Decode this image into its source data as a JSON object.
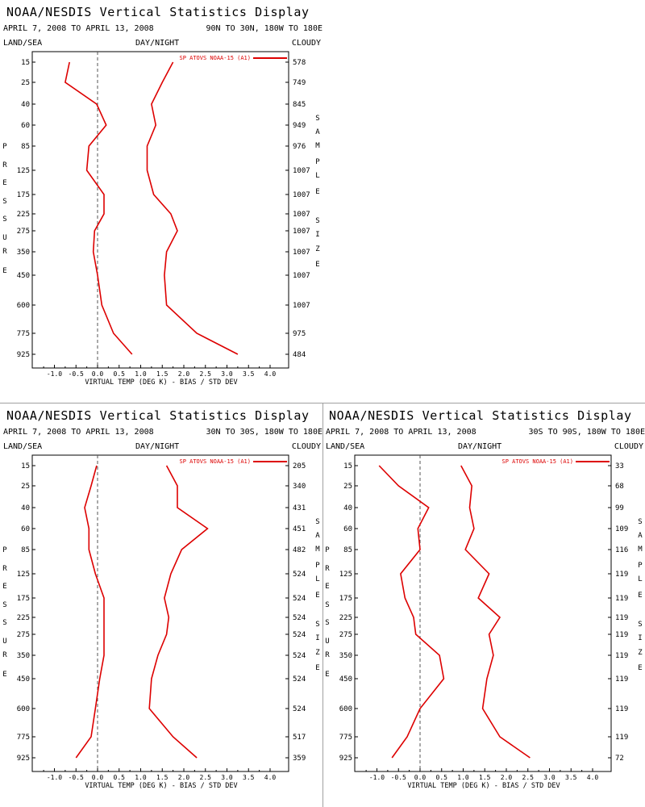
{
  "pressure_levels": [
    "15",
    "25",
    "40",
    "60",
    "85",
    "125",
    "175",
    "225",
    "275",
    "350",
    "450",
    "600",
    "775",
    "925"
  ],
  "x_ticks": [
    "-1.0",
    "-0.5",
    "0.0",
    "0.5",
    "1.0",
    "1.5",
    "2.0",
    "2.5",
    "3.0",
    "3.5",
    "4.0"
  ],
  "colors": {
    "series": "#dd0000",
    "zero_line": "#555555",
    "divider": "#a0a0a0"
  },
  "chart_data": [
    {
      "type": "line",
      "title": "NOAA/NESDIS Vertical Statistics Display",
      "date_range": "APRIL 7, 2008 TO APRIL 13, 2008",
      "region": "90N TO 30N, 180W TO 180E",
      "header_left": "LAND/SEA",
      "header_mid": "DAY/NIGHT",
      "header_right": "CLOUDY",
      "xlabel": "VIRTUAL TEMP (DEG K) - BIAS / STD DEV",
      "ylabel": "PRESSURE",
      "y2label": "SAMPLE SIZE",
      "legend": "SP ATOVS NOAA-15 (A1)",
      "xlim": [
        -1.5,
        4.25
      ],
      "levels": [
        15,
        25,
        40,
        60,
        85,
        125,
        175,
        225,
        275,
        350,
        450,
        600,
        775,
        925
      ],
      "bias": [
        -0.65,
        -0.75,
        -0.02,
        0.2,
        -0.2,
        -0.25,
        0.15,
        0.15,
        -0.07,
        -0.1,
        0.0,
        0.1,
        0.37,
        0.8
      ],
      "std_dev": [
        1.75,
        1.5,
        1.25,
        1.35,
        1.15,
        1.15,
        1.3,
        1.7,
        1.85,
        1.6,
        1.55,
        1.6,
        2.3,
        3.25
      ],
      "sample_size": [
        "578",
        "749",
        "845",
        "949",
        "976",
        "1007",
        "1007",
        "1007",
        "1007",
        "1007",
        "1007",
        "1007",
        "975",
        "484"
      ]
    },
    {
      "type": "line",
      "title": "NOAA/NESDIS Vertical Statistics Display",
      "date_range": "APRIL 7, 2008 TO APRIL 13, 2008",
      "region": "30N TO 30S, 180W TO 180E",
      "header_left": "LAND/SEA",
      "header_mid": "DAY/NIGHT",
      "header_right": "CLOUDY",
      "xlabel": "VIRTUAL TEMP (DEG K) - BIAS / STD DEV",
      "ylabel": "PRESSURE",
      "y2label": "SAMPLE SIZE",
      "legend": "SP ATOVS NOAA-15 (A1)",
      "xlim": [
        -1.5,
        4.25
      ],
      "levels": [
        15,
        25,
        40,
        60,
        85,
        125,
        175,
        225,
        275,
        350,
        450,
        600,
        775,
        925
      ],
      "bias": [
        -0.02,
        -0.15,
        -0.3,
        -0.2,
        -0.2,
        -0.05,
        0.15,
        0.15,
        0.15,
        0.15,
        0.05,
        -0.05,
        -0.15,
        -0.5
      ],
      "std_dev": [
        1.6,
        1.85,
        1.85,
        2.55,
        1.95,
        1.7,
        1.55,
        1.65,
        1.6,
        1.4,
        1.25,
        1.2,
        1.75,
        2.3
      ],
      "sample_size": [
        "205",
        "340",
        "431",
        "451",
        "482",
        "524",
        "524",
        "524",
        "524",
        "524",
        "524",
        "524",
        "517",
        "359"
      ]
    },
    {
      "type": "line",
      "title": "NOAA/NESDIS Vertical Statistics Display",
      "date_range": "APRIL 7, 2008 TO APRIL 13, 2008",
      "region": "30S TO 90S, 180W TO 180E",
      "header_left": "LAND/SEA",
      "header_mid": "DAY/NIGHT",
      "header_right": "CLOUDY",
      "xlabel": "VIRTUAL TEMP (DEG K) - BIAS / STD DEV",
      "ylabel": "PRESSURE",
      "y2label": "SAMPLE SIZE",
      "legend": "SP ATOVS NOAA-15 (A1)",
      "xlim": [
        -1.5,
        4.25
      ],
      "levels": [
        15,
        25,
        40,
        60,
        85,
        125,
        175,
        225,
        275,
        350,
        450,
        600,
        775,
        925
      ],
      "bias": [
        -0.95,
        -0.5,
        0.2,
        -0.05,
        0.0,
        -0.45,
        -0.35,
        -0.15,
        -0.1,
        0.45,
        0.55,
        0.0,
        -0.3,
        -0.65
      ],
      "std_dev": [
        0.95,
        1.2,
        1.15,
        1.25,
        1.05,
        1.6,
        1.35,
        1.85,
        1.6,
        1.7,
        1.55,
        1.45,
        1.85,
        2.55
      ],
      "sample_size": [
        "33",
        "68",
        "99",
        "109",
        "116",
        "119",
        "119",
        "119",
        "119",
        "119",
        "119",
        "119",
        "119",
        "72"
      ]
    }
  ]
}
